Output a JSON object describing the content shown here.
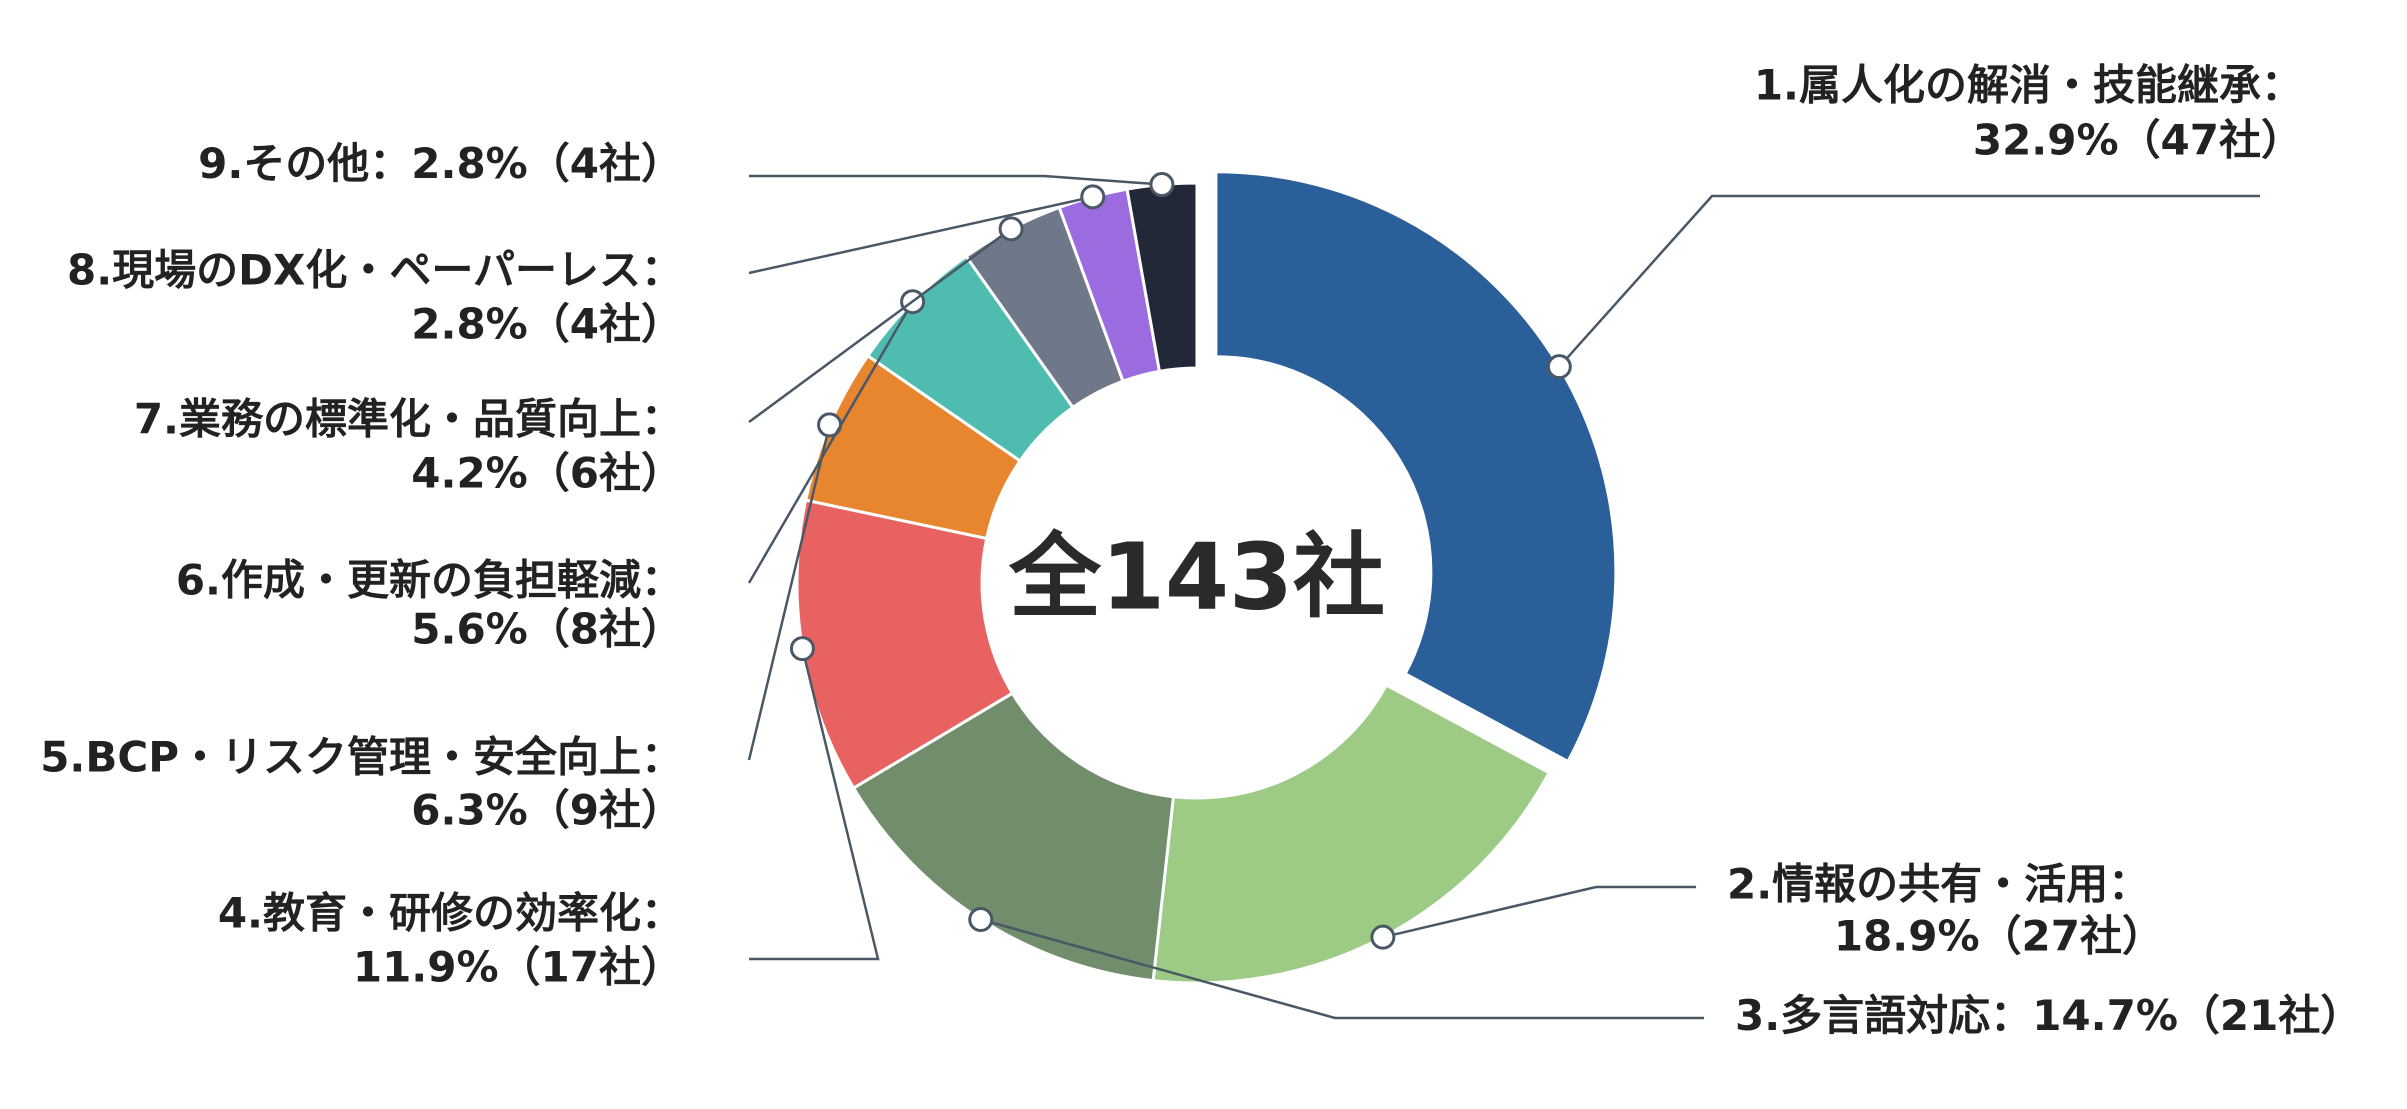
{
  "chart_data": {
    "type": "donut",
    "center_label": "全143社",
    "categories": [
      "1.属人化の解消・技能継承：",
      "2.情報の共有・活用：",
      "3.多言語対応：",
      "4.教育・研修の効率化：",
      "5.BCP・リスク管理・安全向上：",
      "6.作成・更新の負担軽減：",
      "7.業務の標準化・品質向上：",
      "8.現場のDX化・ペーパーレス：",
      "9.その他："
    ],
    "values": [
      32.9,
      18.9,
      14.7,
      11.9,
      6.3,
      5.6,
      4.2,
      2.8,
      2.8
    ],
    "value_labels": [
      "32.9%（47社）",
      "18.9%（27社）",
      "14.7%（21社）",
      "11.9%（17社）",
      "6.3%（9社）",
      "5.6%（8社）",
      "4.2%（6社）",
      "2.8%（4社）",
      "2.8%（4社）"
    ],
    "colors": [
      "#2b5f99",
      "#9dcb86",
      "#728d6c",
      "#e96262",
      "#e8852f",
      "#4fbcb0",
      "#6e7888",
      "#9b6be0",
      "#222838"
    ]
  }
}
